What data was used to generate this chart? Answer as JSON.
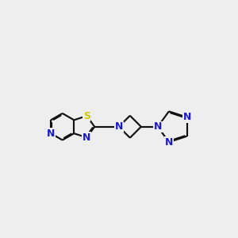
{
  "bg_color": "#eeeeee",
  "bond_color": "#111111",
  "N_color": "#1a1acc",
  "S_color": "#cccc00",
  "lw": 1.55,
  "fs": 9.0,
  "figsize": [
    3.0,
    3.0
  ],
  "dpi": 100,
  "xlim": [
    -0.5,
    8.5
  ],
  "ylim": [
    1.2,
    5.8
  ]
}
